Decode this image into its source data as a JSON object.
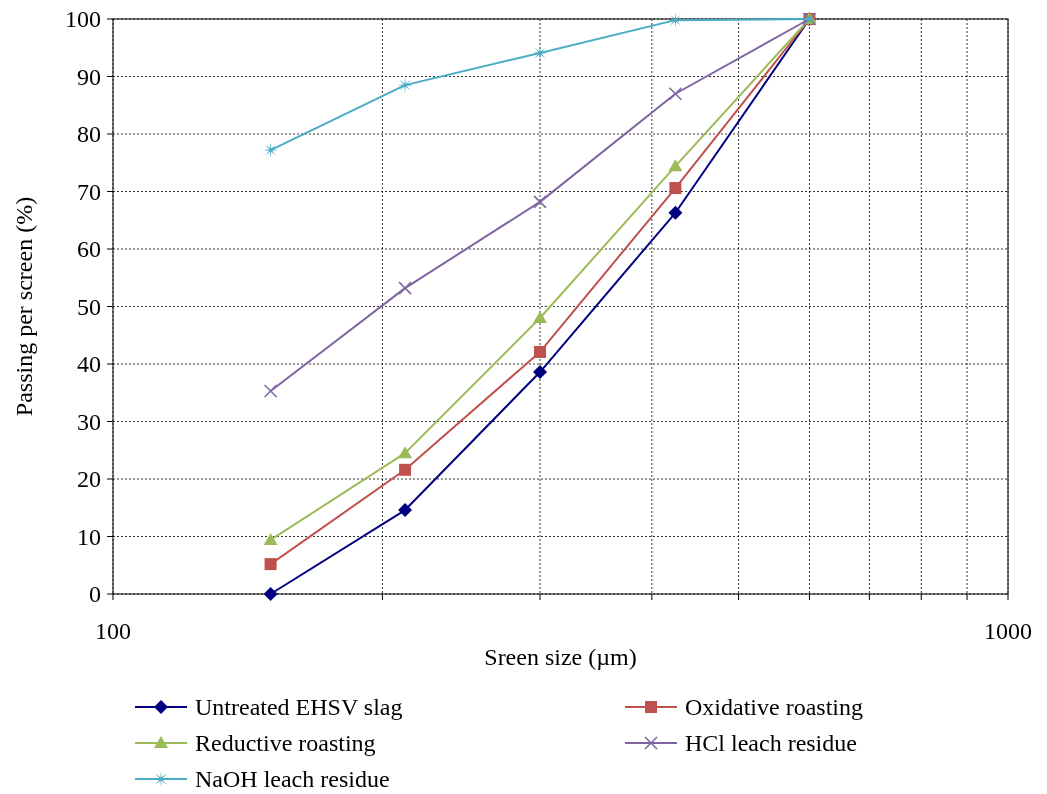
{
  "chart_data": {
    "type": "line",
    "xlabel": "Sreen size (µm)",
    "ylabel": "Passing per screen (%)",
    "log": "x",
    "xlim": [
      100,
      1000
    ],
    "xticks": [
      100,
      {
        "value": 200,
        "label": null
      },
      {
        "value": 300,
        "label": null
      },
      {
        "value": 400,
        "label": null
      },
      {
        "value": 500,
        "label": null
      },
      {
        "value": 600,
        "label": null
      },
      {
        "value": 700,
        "label": null
      },
      {
        "value": 800,
        "label": null
      },
      {
        "value": 900,
        "label": null
      },
      1000
    ],
    "ylim": [
      0,
      100
    ],
    "yticks": [
      0,
      10,
      20,
      30,
      40,
      50,
      60,
      70,
      80,
      90,
      100
    ],
    "grid": true,
    "legend": "bottom",
    "x": [
      150,
      212,
      300,
      425,
      600
    ],
    "series": [
      {
        "name": "Untreated EHSV slag",
        "color": "#000080",
        "marker": "diamond",
        "values": [
          0,
          14.6,
          38.6,
          66.3,
          100
        ]
      },
      {
        "name": "Oxidative roasting",
        "color": "#c0504d",
        "marker": "square",
        "values": [
          5.2,
          21.6,
          42.1,
          70.6,
          100
        ]
      },
      {
        "name": "Reductive roasting",
        "color": "#9bbb59",
        "marker": "triangle",
        "values": [
          9.4,
          24.5,
          48,
          74.4,
          100
        ]
      },
      {
        "name": "HCl leach residue",
        "color": "#8064a2",
        "marker": "cross",
        "values": [
          35.3,
          53.2,
          68.2,
          87,
          100
        ]
      },
      {
        "name": "NaOH leach residue",
        "color": "#4bacc6",
        "marker": "star",
        "values": [
          77.2,
          88.5,
          94.1,
          99.8,
          100
        ]
      }
    ]
  }
}
